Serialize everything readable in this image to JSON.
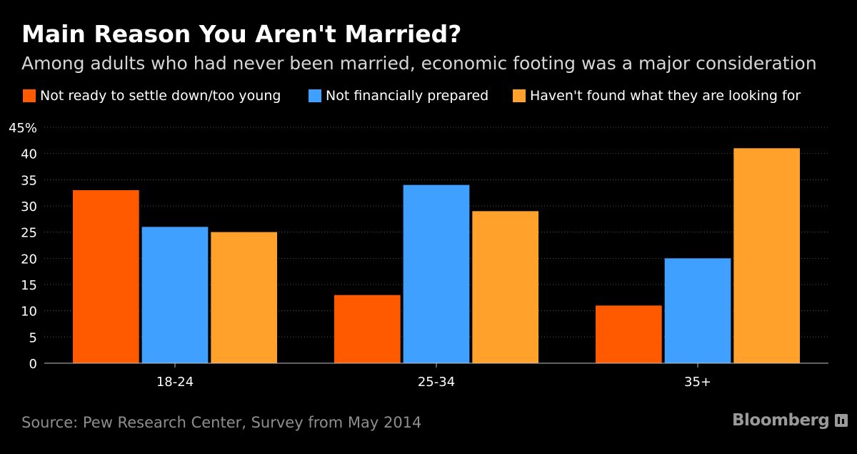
{
  "header": {
    "title": "Main Reason You Aren't Married?",
    "subtitle": "Among adults who had never been married, economic footing was a major consideration"
  },
  "footer": {
    "source": "Source: Pew Research Center, Survey from May 2014",
    "brand": "Bloomberg"
  },
  "chart_data": {
    "type": "bar",
    "title": "Main Reason You Aren't Married?",
    "subtitle": "Among adults who had never been married, economic footing was a major consideration",
    "xlabel": "",
    "ylabel": "",
    "categories": [
      "18-24",
      "25-34",
      "35+"
    ],
    "series": [
      {
        "name": "Not ready to settle down/too young",
        "color": "#ff5a00",
        "values": [
          33,
          13,
          11
        ]
      },
      {
        "name": "Not financially prepared",
        "color": "#40a0ff",
        "values": [
          26,
          34,
          20
        ]
      },
      {
        "name": "Haven't found what they are looking for",
        "color": "#ffa12b",
        "values": [
          25,
          29,
          41
        ]
      }
    ],
    "ylim": [
      0,
      45
    ],
    "yticks": [
      0,
      5,
      10,
      15,
      20,
      25,
      30,
      35,
      40,
      45
    ],
    "ytick_labels": [
      "0",
      "5",
      "10",
      "15",
      "20",
      "25",
      "30",
      "35",
      "40",
      "45%"
    ],
    "grid": true,
    "legend_position": "top-left",
    "colors": {
      "background": "#000000",
      "grid": "#555555",
      "axis": "#bfbfbf",
      "tick_text": "#ffffff"
    }
  }
}
